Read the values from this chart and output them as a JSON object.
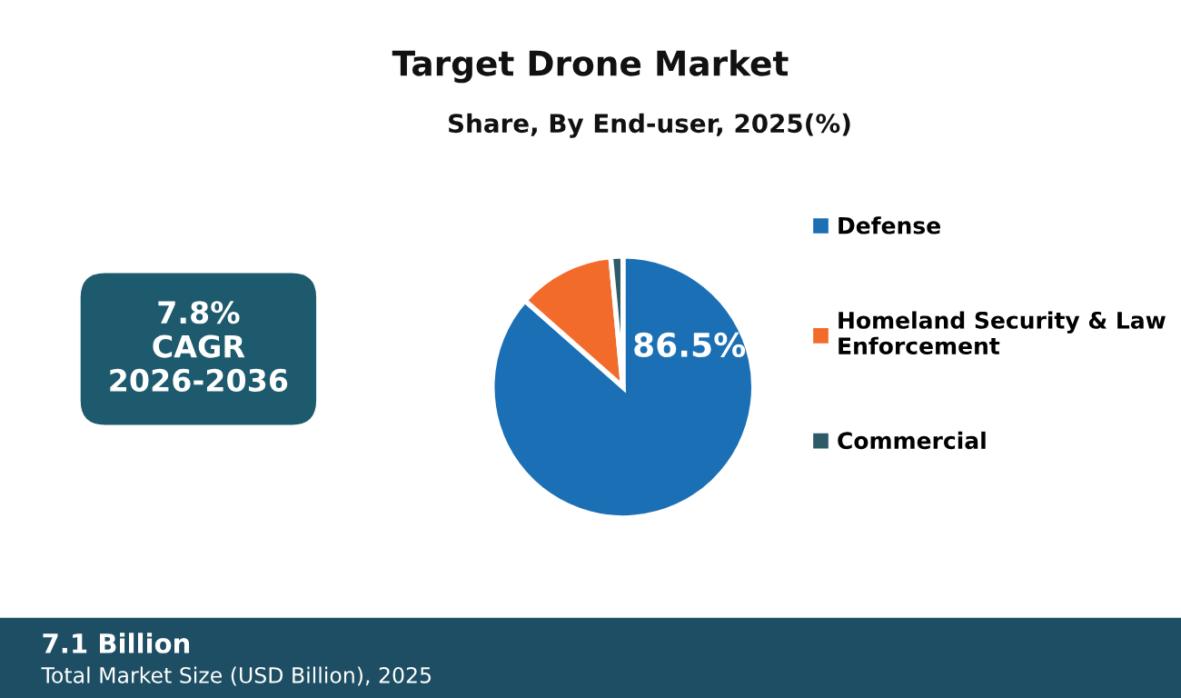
{
  "chart_data": {
    "type": "pie",
    "title": "Target Drone Market",
    "subtitle": "Share, By End-user, 2025(%)",
    "categories": [
      "Defense",
      "Homeland Security & Law\nEnforcement",
      "Commercial"
    ],
    "values": [
      86.5,
      12.0,
      1.5
    ],
    "colors": [
      "#1b6fb5",
      "#f26b2b",
      "#2e5b68"
    ],
    "value_labels": [
      "86.5%",
      null,
      null
    ],
    "legend": "right",
    "annotations": [
      "7.8%\nCAGR\n2026-2036",
      "7.1 Billion",
      "Total Market Size (USD Billion), 2025"
    ]
  }
}
